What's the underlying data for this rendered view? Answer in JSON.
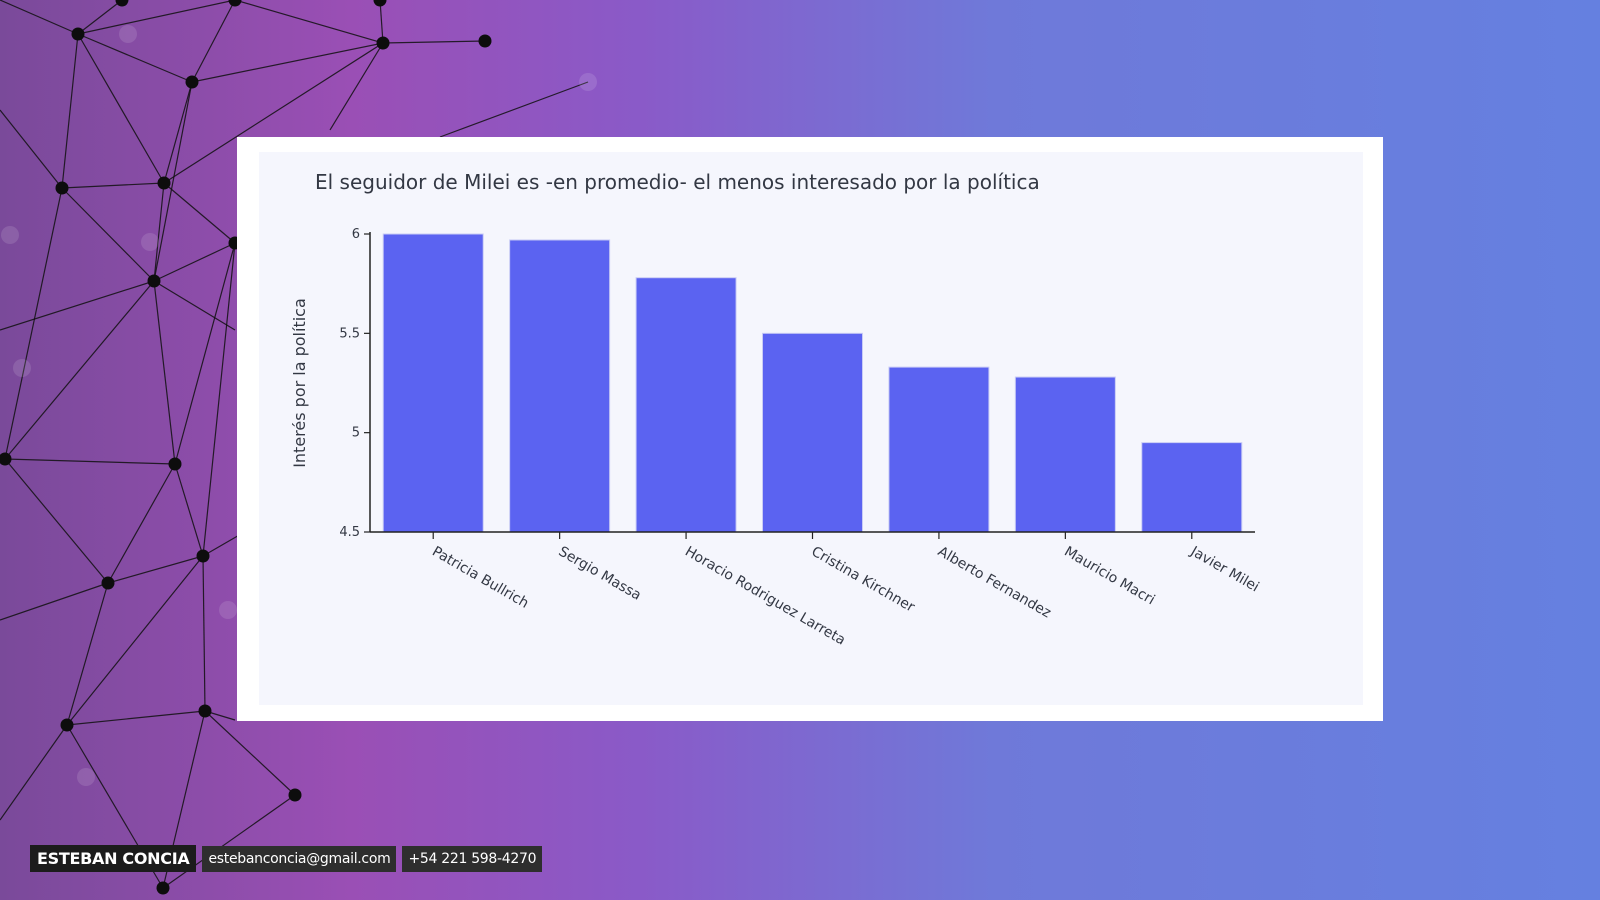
{
  "chart_data": {
    "type": "bar",
    "title": "El seguidor de Milei es -en promedio- el menos interesado por la política",
    "xlabel": "",
    "ylabel": "Interés por la política",
    "categories": [
      "Patricia Bullrich",
      "Sergio Massa",
      "Horacio Rodriguez Larreta",
      "Cristina Kirchner",
      "Alberto Fernandez",
      "Mauricio Macri",
      "Javier Milei"
    ],
    "values": [
      6.0,
      5.97,
      5.78,
      5.5,
      5.33,
      5.28,
      4.95
    ],
    "ylim": [
      4.5,
      6
    ],
    "yticks": [
      "4.5",
      "5",
      "5.5",
      "6"
    ],
    "bar_color": "#5b63f1",
    "grid": false,
    "legend": "none"
  },
  "footer": {
    "name": "ESTEBAN CONCIA",
    "email": "estebanconcia@gmail.com",
    "phone": "+54 221 598-4270"
  }
}
